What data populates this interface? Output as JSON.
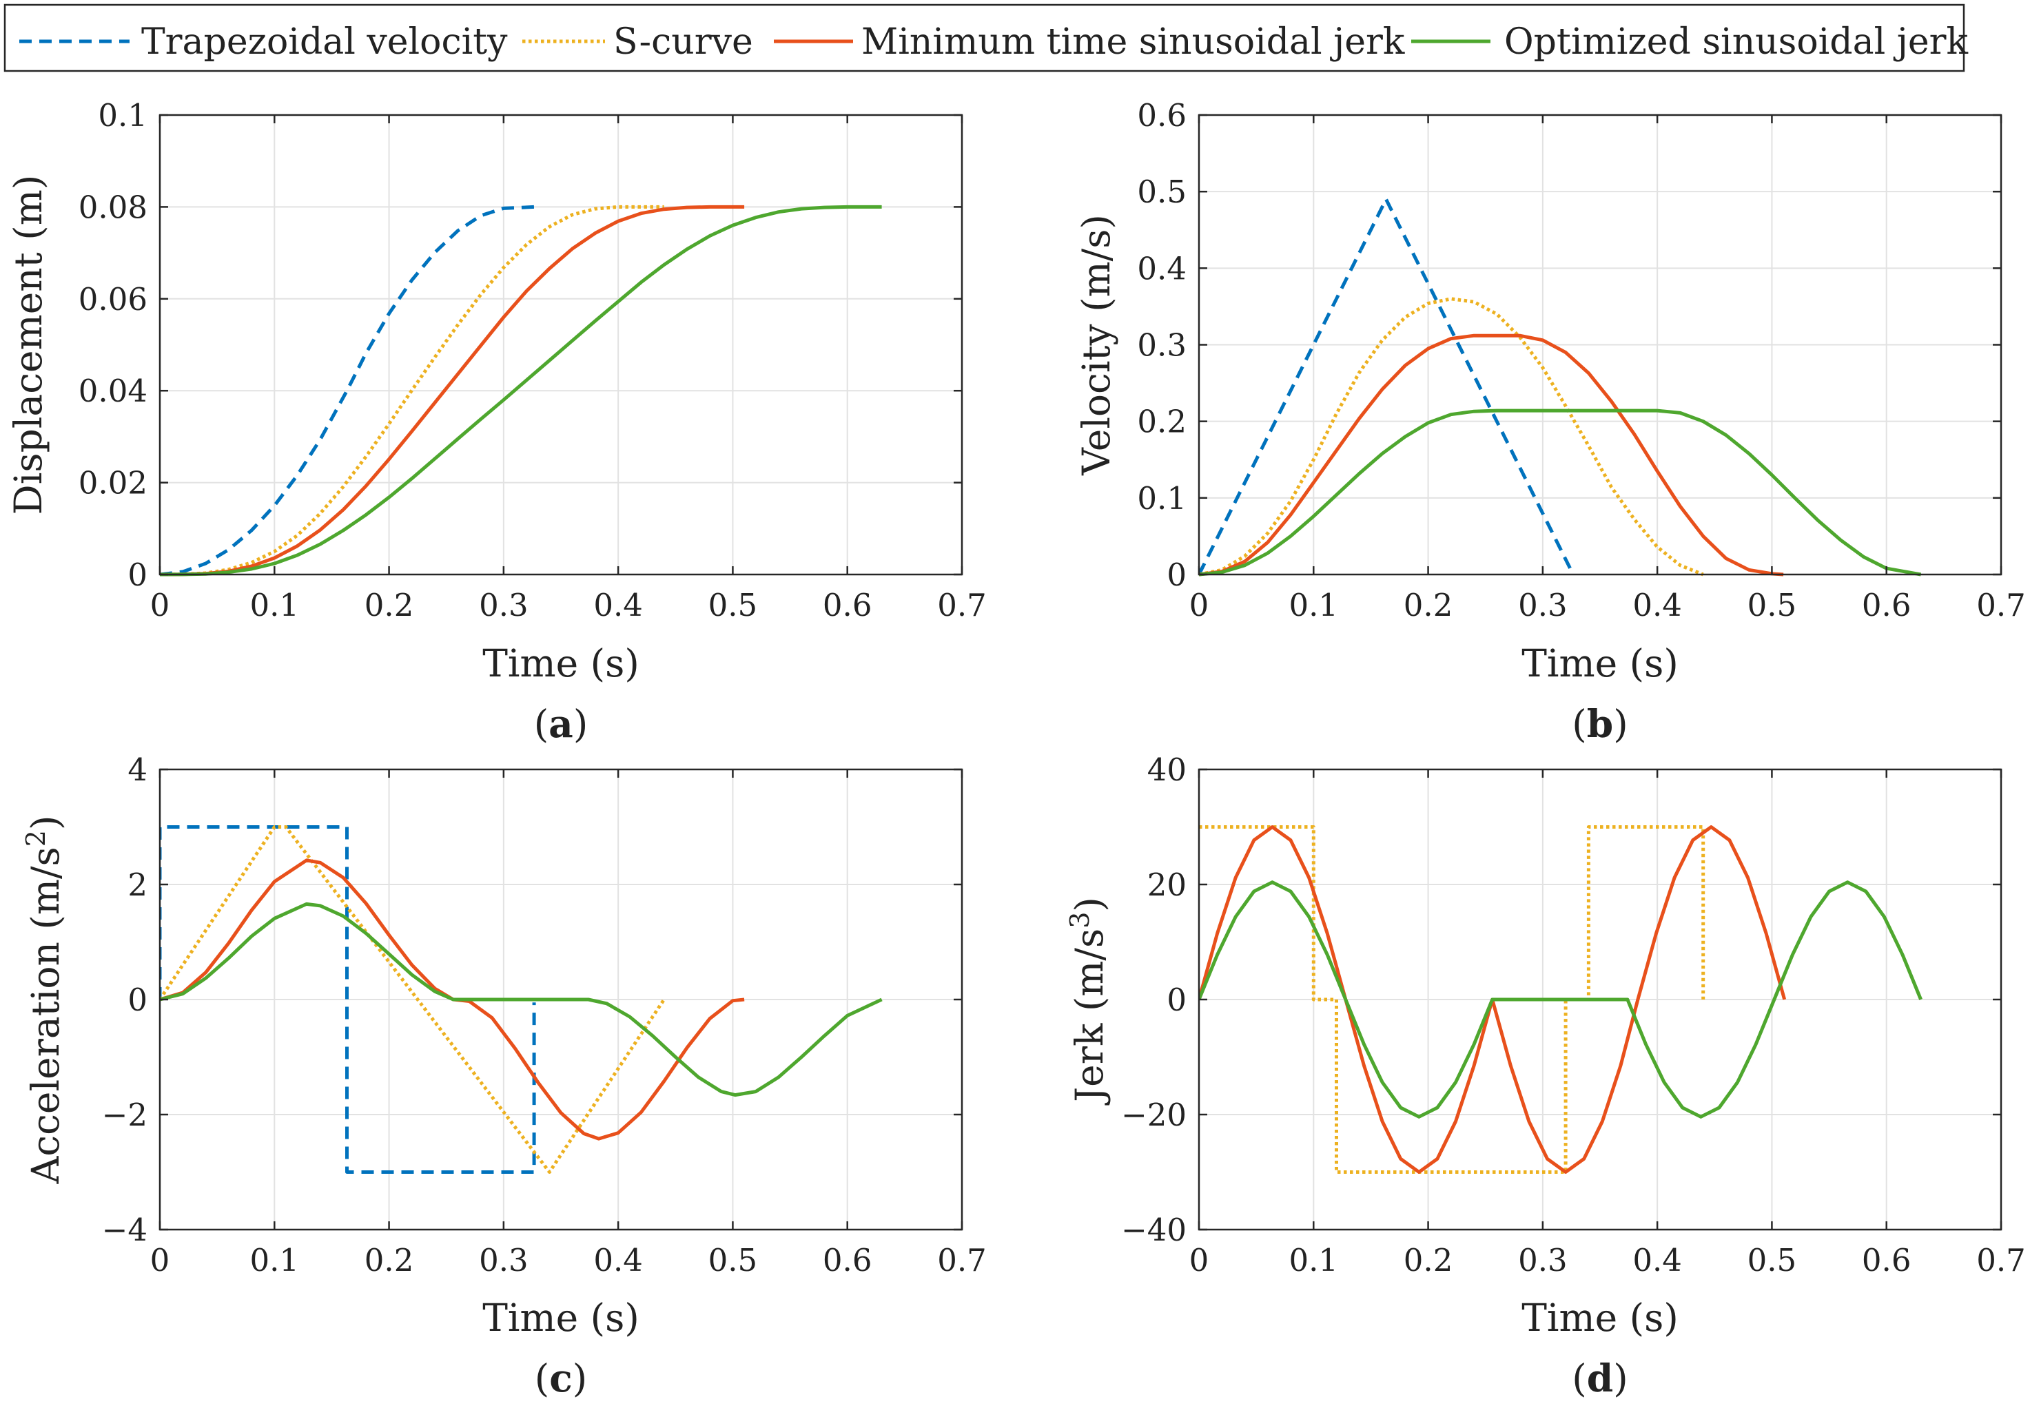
{
  "legend": [
    {
      "label": "Trapezoidal velocity",
      "color": "#0072bd",
      "dash": "dashed"
    },
    {
      "label": "S-curve",
      "color": "#edb120",
      "dash": "dotted"
    },
    {
      "label": "Minimum time sinusoidal jerk",
      "color": "#e8501b",
      "dash": "solid"
    },
    {
      "label": "Optimized sinusoidal jerk",
      "color": "#4ea72e",
      "dash": "solid"
    }
  ],
  "chart_data": [
    {
      "type": "line",
      "panel": "a",
      "caption_letter": "a",
      "xlabel": "Time (s)",
      "ylabel": "Displacement (m)",
      "xlim": [
        0,
        0.7
      ],
      "ylim": [
        0,
        0.1
      ],
      "xticks": [
        0,
        0.1,
        0.2,
        0.3,
        0.4,
        0.5,
        0.6,
        0.7
      ],
      "yticks": [
        0,
        0.02,
        0.04,
        0.06,
        0.08,
        0.1
      ],
      "xtick_labels": [
        "0",
        "0.1",
        "0.2",
        "0.3",
        "0.4",
        "0.5",
        "0.6",
        "0.7"
      ],
      "ytick_labels": [
        "0",
        "0.02",
        "0.04",
        "0.06",
        "0.08",
        "0.1"
      ],
      "grid": true,
      "series": [
        {
          "name": "Trapezoidal velocity",
          "x": [
            0,
            0.02,
            0.04,
            0.06,
            0.08,
            0.1,
            0.12,
            0.14,
            0.1633,
            0.18,
            0.2,
            0.22,
            0.24,
            0.26,
            0.28,
            0.3,
            0.3266
          ],
          "y": [
            0,
            0.0006,
            0.0024,
            0.0054,
            0.0096,
            0.015,
            0.0216,
            0.0294,
            0.04,
            0.0482,
            0.0568,
            0.0641,
            0.0701,
            0.0748,
            0.0781,
            0.0797,
            0.08
          ]
        },
        {
          "name": "S-curve",
          "x": [
            0,
            0.02,
            0.04,
            0.06,
            0.08,
            0.1,
            0.12,
            0.14,
            0.16,
            0.18,
            0.2,
            0.22,
            0.24,
            0.26,
            0.28,
            0.3,
            0.32,
            0.34,
            0.36,
            0.38,
            0.4,
            0.42,
            0.44
          ],
          "y": [
            0,
            4e-05,
            0.0003,
            0.0011,
            0.0026,
            0.005,
            0.0085,
            0.0133,
            0.0191,
            0.0257,
            0.0328,
            0.0401,
            0.0473,
            0.0543,
            0.0609,
            0.0668,
            0.0718,
            0.0757,
            0.0783,
            0.0796,
            0.08,
            0.08,
            0.08
          ]
        },
        {
          "name": "Minimum time sinusoidal jerk",
          "x": [
            0,
            0.02,
            0.04,
            0.06,
            0.08,
            0.1,
            0.12,
            0.14,
            0.16,
            0.18,
            0.2,
            0.22,
            0.24,
            0.26,
            0.28,
            0.3,
            0.32,
            0.34,
            0.36,
            0.38,
            0.4,
            0.42,
            0.44,
            0.46,
            0.48,
            0.5,
            0.51
          ],
          "y": [
            0,
            3e-05,
            0.0002,
            0.0007,
            0.0018,
            0.0036,
            0.0062,
            0.0097,
            0.0141,
            0.0193,
            0.0251,
            0.0312,
            0.0374,
            0.0436,
            0.0498,
            0.056,
            0.0617,
            0.0666,
            0.0709,
            0.0743,
            0.0769,
            0.0786,
            0.0795,
            0.0799,
            0.08,
            0.08,
            0.08
          ]
        },
        {
          "name": "Optimized sinusoidal jerk",
          "x": [
            0,
            0.02,
            0.04,
            0.06,
            0.08,
            0.1,
            0.12,
            0.14,
            0.16,
            0.18,
            0.2,
            0.22,
            0.24,
            0.26,
            0.28,
            0.3,
            0.32,
            0.34,
            0.36,
            0.38,
            0.4,
            0.42,
            0.44,
            0.46,
            0.48,
            0.5,
            0.52,
            0.54,
            0.56,
            0.58,
            0.6,
            0.63
          ],
          "y": [
            0,
            2e-05,
            0.0001,
            0.0005,
            0.0012,
            0.0024,
            0.0042,
            0.0066,
            0.0096,
            0.013,
            0.0168,
            0.0209,
            0.0252,
            0.0295,
            0.0338,
            0.038,
            0.0423,
            0.0466,
            0.0509,
            0.0552,
            0.0594,
            0.0636,
            0.0674,
            0.0708,
            0.0737,
            0.076,
            0.0777,
            0.0789,
            0.0796,
            0.0799,
            0.08,
            0.08
          ]
        }
      ]
    },
    {
      "type": "line",
      "panel": "b",
      "caption_letter": "b",
      "xlabel": "Time (s)",
      "ylabel": "Velocity (m/s)",
      "xlim": [
        0,
        0.7
      ],
      "ylim": [
        0,
        0.6
      ],
      "xticks": [
        0,
        0.1,
        0.2,
        0.3,
        0.4,
        0.5,
        0.6,
        0.7
      ],
      "yticks": [
        0,
        0.1,
        0.2,
        0.3,
        0.4,
        0.5,
        0.6
      ],
      "xtick_labels": [
        "0",
        "0.1",
        "0.2",
        "0.3",
        "0.4",
        "0.5",
        "0.6",
        "0.7"
      ],
      "ytick_labels": [
        "0",
        "0.1",
        "0.2",
        "0.3",
        "0.4",
        "0.5",
        "0.6"
      ],
      "grid": true,
      "series": [
        {
          "name": "Trapezoidal velocity",
          "x": [
            0,
            0.1633,
            0.3266
          ],
          "y": [
            0,
            0.49,
            0
          ]
        },
        {
          "name": "S-curve",
          "x": [
            0,
            0.02,
            0.04,
            0.06,
            0.08,
            0.1,
            0.12,
            0.14,
            0.16,
            0.18,
            0.2,
            0.22,
            0.24,
            0.26,
            0.28,
            0.3,
            0.32,
            0.34,
            0.36,
            0.38,
            0.4,
            0.42,
            0.44
          ],
          "y": [
            0,
            0.006,
            0.024,
            0.054,
            0.096,
            0.15,
            0.21,
            0.264,
            0.306,
            0.336,
            0.354,
            0.36,
            0.356,
            0.34,
            0.31,
            0.27,
            0.22,
            0.168,
            0.114,
            0.072,
            0.036,
            0.012,
            0
          ]
        },
        {
          "name": "Minimum time sinusoidal jerk",
          "x": [
            0,
            0.02,
            0.04,
            0.06,
            0.08,
            0.1,
            0.12,
            0.14,
            0.16,
            0.18,
            0.2,
            0.22,
            0.24,
            0.26,
            0.28,
            0.3,
            0.32,
            0.34,
            0.36,
            0.38,
            0.4,
            0.42,
            0.44,
            0.46,
            0.48,
            0.5,
            0.51
          ],
          "y": [
            0,
            0.004,
            0.017,
            0.042,
            0.078,
            0.12,
            0.162,
            0.204,
            0.242,
            0.273,
            0.295,
            0.308,
            0.312,
            0.312,
            0.312,
            0.306,
            0.29,
            0.263,
            0.226,
            0.183,
            0.135,
            0.089,
            0.05,
            0.021,
            0.006,
            0.001,
            0
          ]
        },
        {
          "name": "Optimized sinusoidal jerk",
          "x": [
            0,
            0.02,
            0.04,
            0.06,
            0.08,
            0.1,
            0.12,
            0.14,
            0.16,
            0.18,
            0.2,
            0.22,
            0.24,
            0.26,
            0.28,
            0.3,
            0.32,
            0.34,
            0.36,
            0.38,
            0.4,
            0.42,
            0.44,
            0.46,
            0.48,
            0.5,
            0.52,
            0.54,
            0.56,
            0.58,
            0.6,
            0.63
          ],
          "y": [
            0,
            0.003,
            0.012,
            0.028,
            0.05,
            0.076,
            0.104,
            0.132,
            0.158,
            0.18,
            0.198,
            0.209,
            0.213,
            0.214,
            0.214,
            0.214,
            0.214,
            0.214,
            0.214,
            0.214,
            0.214,
            0.211,
            0.2,
            0.182,
            0.158,
            0.13,
            0.1,
            0.071,
            0.045,
            0.023,
            0.008,
            0
          ]
        }
      ]
    },
    {
      "type": "line",
      "panel": "c",
      "caption_letter": "c",
      "xlabel": "Time (s)",
      "ylabel": "Acceleration (m/s",
      "ylabel_sup": "2",
      "ylabel_end": ")",
      "xlim": [
        0,
        0.7
      ],
      "ylim": [
        -4,
        4
      ],
      "xticks": [
        0,
        0.1,
        0.2,
        0.3,
        0.4,
        0.5,
        0.6,
        0.7
      ],
      "yticks": [
        -4,
        -2,
        0,
        2,
        4
      ],
      "xtick_labels": [
        "0",
        "0.1",
        "0.2",
        "0.3",
        "0.4",
        "0.5",
        "0.6",
        "0.7"
      ],
      "ytick_labels": [
        "−4",
        "−2",
        "0",
        "2",
        "4"
      ],
      "grid": true,
      "series": [
        {
          "name": "Trapezoidal velocity",
          "x": [
            0,
            0,
            0.1633,
            0.1633,
            0.3266,
            0.3266
          ],
          "y": [
            0,
            3,
            3,
            -3,
            -3,
            -0.05
          ]
        },
        {
          "name": "S-curve",
          "x": [
            0,
            0.1,
            0.11,
            0.34,
            0.44
          ],
          "y": [
            0,
            3,
            3,
            -3,
            0
          ]
        },
        {
          "name": "Minimum time sinusoidal jerk",
          "x": [
            0,
            0.02,
            0.04,
            0.06,
            0.08,
            0.1,
            0.128,
            0.14,
            0.16,
            0.18,
            0.2,
            0.22,
            0.24,
            0.256,
            0.27,
            0.29,
            0.31,
            0.33,
            0.35,
            0.37,
            0.383,
            0.4,
            0.42,
            0.44,
            0.46,
            0.48,
            0.5,
            0.51
          ],
          "y": [
            0,
            0.12,
            0.47,
            0.98,
            1.55,
            2.05,
            2.42,
            2.38,
            2.12,
            1.67,
            1.12,
            0.6,
            0.19,
            0,
            -0.03,
            -0.32,
            -0.85,
            -1.44,
            -1.97,
            -2.33,
            -2.42,
            -2.32,
            -1.96,
            -1.42,
            -0.84,
            -0.33,
            -0.02,
            0
          ]
        },
        {
          "name": "Optimized sinusoidal jerk",
          "x": [
            0,
            0.02,
            0.04,
            0.06,
            0.08,
            0.1,
            0.128,
            0.14,
            0.16,
            0.18,
            0.2,
            0.22,
            0.24,
            0.256,
            0.3,
            0.35,
            0.374,
            0.39,
            0.41,
            0.43,
            0.45,
            0.47,
            0.49,
            0.502,
            0.52,
            0.54,
            0.56,
            0.58,
            0.6,
            0.63
          ],
          "y": [
            0,
            0.1,
            0.37,
            0.72,
            1.1,
            1.41,
            1.66,
            1.63,
            1.45,
            1.15,
            0.79,
            0.43,
            0.14,
            0,
            0,
            0,
            0,
            -0.07,
            -0.3,
            -0.63,
            -1.0,
            -1.35,
            -1.6,
            -1.66,
            -1.6,
            -1.35,
            -1.0,
            -0.63,
            -0.28,
            0
          ]
        }
      ]
    },
    {
      "type": "line",
      "panel": "d",
      "caption_letter": "d",
      "xlabel": "Time (s)",
      "ylabel": "Jerk (m/s",
      "ylabel_sup": "3",
      "ylabel_end": ")",
      "xlim": [
        0,
        0.7
      ],
      "ylim": [
        -40,
        40
      ],
      "xticks": [
        0,
        0.1,
        0.2,
        0.3,
        0.4,
        0.5,
        0.6,
        0.7
      ],
      "yticks": [
        -40,
        -20,
        0,
        20,
        40
      ],
      "xtick_labels": [
        "0",
        "0.1",
        "0.2",
        "0.3",
        "0.4",
        "0.5",
        "0.6",
        "0.7"
      ],
      "ytick_labels": [
        "−40",
        "−20",
        "0",
        "20",
        "40"
      ],
      "grid": true,
      "series": [
        {
          "name": "S-curve",
          "x": [
            0,
            0.1,
            0.1,
            0.12,
            0.12,
            0.32,
            0.32,
            0.34,
            0.34,
            0.44,
            0.44
          ],
          "y": [
            30,
            30,
            0,
            0,
            -30,
            -30,
            0,
            0,
            30,
            30,
            0
          ]
        },
        {
          "name": "Minimum time sinusoidal jerk",
          "x": [
            0,
            0.016,
            0.032,
            0.048,
            0.064,
            0.08,
            0.096,
            0.112,
            0.128,
            0.144,
            0.16,
            0.176,
            0.192,
            0.208,
            0.224,
            0.24,
            0.256,
            0.272,
            0.288,
            0.304,
            0.32,
            0.336,
            0.352,
            0.368,
            0.383,
            0.399,
            0.415,
            0.431,
            0.447,
            0.463,
            0.479,
            0.495,
            0.511
          ],
          "y": [
            0,
            11.5,
            21.2,
            27.7,
            30,
            27.7,
            21.2,
            11.5,
            0,
            -11.5,
            -21.2,
            -27.7,
            -30,
            -27.7,
            -21.2,
            -11.5,
            0,
            -11.5,
            -21.2,
            -27.7,
            -30,
            -27.7,
            -21.2,
            -11.5,
            0,
            11.5,
            21.2,
            27.7,
            30,
            27.7,
            21.2,
            11.5,
            0
          ]
        },
        {
          "name": "Optimized sinusoidal jerk",
          "x": [
            0,
            0.016,
            0.032,
            0.048,
            0.064,
            0.08,
            0.096,
            0.112,
            0.128,
            0.144,
            0.16,
            0.176,
            0.192,
            0.208,
            0.224,
            0.24,
            0.256,
            0.3,
            0.35,
            0.374,
            0.39,
            0.406,
            0.422,
            0.438,
            0.454,
            0.47,
            0.486,
            0.502,
            0.518,
            0.534,
            0.55,
            0.566,
            0.582,
            0.598,
            0.614,
            0.63
          ],
          "y": [
            0,
            7.8,
            14.4,
            18.8,
            20.4,
            18.8,
            14.4,
            7.8,
            0,
            -7.8,
            -14.4,
            -18.8,
            -20.4,
            -18.8,
            -14.4,
            -7.8,
            0,
            0,
            0,
            0,
            -7.8,
            -14.4,
            -18.8,
            -20.4,
            -18.8,
            -14.4,
            -7.8,
            0,
            7.8,
            14.4,
            18.8,
            20.4,
            18.8,
            14.4,
            7.8,
            0
          ]
        }
      ]
    }
  ]
}
